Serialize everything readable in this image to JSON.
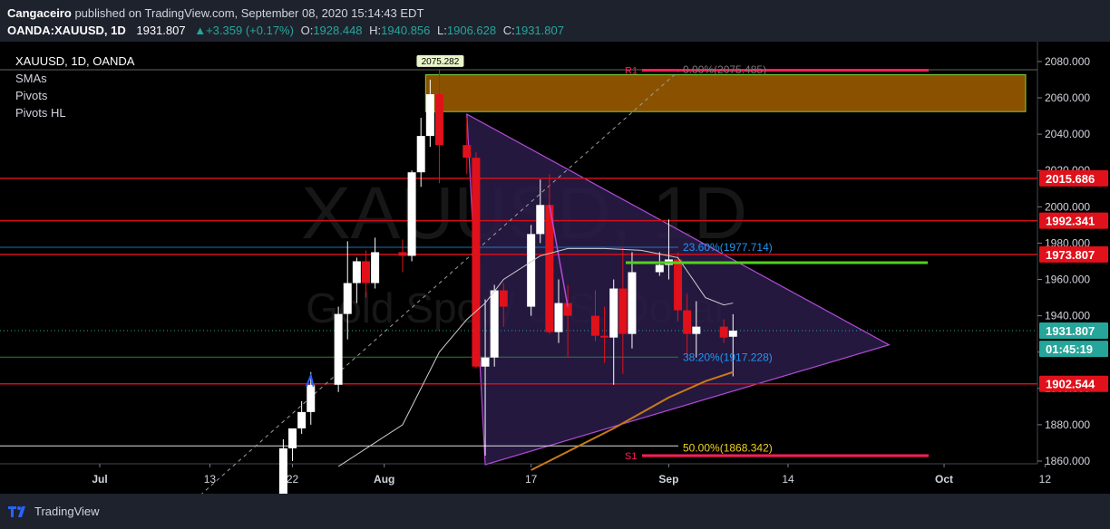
{
  "header": {
    "author": "Cangaceiro",
    "published_text": "published on TradingView.com, September 08, 2020 15:14:43 EDT",
    "symbol": "OANDA:XAUUSD, 1D",
    "last": "1931.807",
    "change": "+3.359 (+0.17%)",
    "o_label": "O:",
    "o": "1928.448",
    "h_label": "H:",
    "h": "1940.856",
    "l_label": "L:",
    "l": "1906.628",
    "c_label": "C:",
    "c": "1931.807"
  },
  "legend": {
    "title": "XAUUSD, 1D, OANDA",
    "items": [
      "SMAs",
      "Pivots",
      "Pivots HL"
    ]
  },
  "watermark": {
    "line1": "XAUUSD, 1D",
    "line2": "Gold Spot / U.S. Dollar"
  },
  "footer": {
    "brand": "TradingView"
  },
  "colors": {
    "bg": "#000000",
    "up": "#ffffff",
    "down": "#e0111b",
    "triangle": "#b34bd8",
    "triangle_fill": "#2a1c4a",
    "zone": "#8a5200",
    "zone_border": "#7fd13b",
    "resistance": "#d0101a",
    "green_level": "#52d11b",
    "sma_orange": "#c67a18",
    "sma_white": "#cfcfcf"
  },
  "chart_data": {
    "type": "candlestick",
    "x_ticks": [
      "Jul",
      "13",
      "22",
      "Aug",
      "17",
      "Sep",
      "14",
      "Oct",
      "12"
    ],
    "y_ticks": [
      "1860.000",
      "1880.000",
      "1900.000",
      "1920.000",
      "1940.000",
      "1960.000",
      "1980.000",
      "2000.000",
      "2020.000",
      "2040.000",
      "2060.000",
      "2080.000"
    ],
    "ylim": [
      1856,
      2086
    ],
    "candles": [
      {
        "d": "2020-07-21",
        "o": 1842,
        "h": 1872,
        "l": 1838,
        "c": 1867
      },
      {
        "d": "2020-07-22",
        "o": 1867,
        "h": 1877,
        "l": 1860,
        "c": 1878
      },
      {
        "d": "2020-07-23",
        "o": 1878,
        "h": 1893,
        "l": 1875,
        "c": 1887
      },
      {
        "d": "2020-07-24",
        "o": 1887,
        "h": 1909,
        "l": 1880,
        "c": 1902
      },
      {
        "d": "2020-07-27",
        "o": 1902,
        "h": 1945,
        "l": 1898,
        "c": 1941
      },
      {
        "d": "2020-07-28",
        "o": 1941,
        "h": 1981,
        "l": 1927,
        "c": 1958
      },
      {
        "d": "2020-07-29",
        "o": 1958,
        "h": 1972,
        "l": 1947,
        "c": 1970
      },
      {
        "d": "2020-07-30",
        "o": 1970,
        "h": 1976,
        "l": 1950,
        "c": 1958
      },
      {
        "d": "2020-07-31",
        "o": 1958,
        "h": 1983,
        "l": 1955,
        "c": 1975
      },
      {
        "d": "2020-08-03",
        "o": 1975,
        "h": 1982,
        "l": 1964,
        "c": 1973
      },
      {
        "d": "2020-08-04",
        "o": 1973,
        "h": 2020,
        "l": 1970,
        "c": 2019
      },
      {
        "d": "2020-08-05",
        "o": 2019,
        "h": 2049,
        "l": 2011,
        "c": 2039
      },
      {
        "d": "2020-08-06",
        "o": 2039,
        "h": 2070,
        "l": 2033,
        "c": 2062
      },
      {
        "d": "2020-08-07",
        "o": 2062,
        "h": 2075.282,
        "l": 2013,
        "c": 2034
      },
      {
        "d": "2020-08-10",
        "o": 2034,
        "h": 2049,
        "l": 2018,
        "c": 2027
      },
      {
        "d": "2020-08-11",
        "o": 2027,
        "h": 2030,
        "l": 1911,
        "c": 1912
      },
      {
        "d": "2020-08-12",
        "o": 1912,
        "h": 1949,
        "l": 1863,
        "c": 1917
      },
      {
        "d": "2020-08-13",
        "o": 1917,
        "h": 1957,
        "l": 1912,
        "c": 1954
      },
      {
        "d": "2020-08-14",
        "o": 1954,
        "h": 1958,
        "l": 1934,
        "c": 1945
      },
      {
        "d": "2020-08-17",
        "o": 1945,
        "h": 1990,
        "l": 1940,
        "c": 1985
      },
      {
        "d": "2020-08-18",
        "o": 1985,
        "h": 2015,
        "l": 1980,
        "c": 2001
      },
      {
        "d": "2020-08-19",
        "o": 2001,
        "h": 2018,
        "l": 1930,
        "c": 1931
      },
      {
        "d": "2020-08-20",
        "o": 1931,
        "h": 1960,
        "l": 1925,
        "c": 1947
      },
      {
        "d": "2020-08-21",
        "o": 1947,
        "h": 1957,
        "l": 1917,
        "c": 1940
      },
      {
        "d": "2020-08-24",
        "o": 1940,
        "h": 1954,
        "l": 1926,
        "c": 1929
      },
      {
        "d": "2020-08-25",
        "o": 1929,
        "h": 1945,
        "l": 1914,
        "c": 1928
      },
      {
        "d": "2020-08-26",
        "o": 1928,
        "h": 1960,
        "l": 1902,
        "c": 1955
      },
      {
        "d": "2020-08-27",
        "o": 1955,
        "h": 1978,
        "l": 1908,
        "c": 1930
      },
      {
        "d": "2020-08-28",
        "o": 1930,
        "h": 1975,
        "l": 1922,
        "c": 1964
      },
      {
        "d": "2020-08-31",
        "o": 1964,
        "h": 1975,
        "l": 1962,
        "c": 1968
      },
      {
        "d": "2020-09-01",
        "o": 1968,
        "h": 1993,
        "l": 1960,
        "c": 1971
      },
      {
        "d": "2020-09-02",
        "o": 1971,
        "h": 1975,
        "l": 1937,
        "c": 1943
      },
      {
        "d": "2020-09-03",
        "o": 1943,
        "h": 1952,
        "l": 1917,
        "c": 1930
      },
      {
        "d": "2020-09-04",
        "o": 1930,
        "h": 1948,
        "l": 1917,
        "c": 1934
      },
      {
        "d": "2020-09-07",
        "o": 1934,
        "h": 1938,
        "l": 1925,
        "c": 1928
      },
      {
        "d": "2020-09-08",
        "o": 1928.448,
        "h": 1940.856,
        "l": 1906.628,
        "c": 1931.807
      }
    ],
    "annotations": {
      "high_label": "2075.282",
      "fib": [
        {
          "label": "0.00%(2075.485)",
          "price": 2075.485,
          "color": "#7a7a7a"
        },
        {
          "label": "23.60%(1977.714)",
          "price": 1977.714,
          "color": "#2196f3"
        },
        {
          "label": "38.20%(1917.228)",
          "price": 1917.228,
          "color": "#2196f3"
        },
        {
          "label": "50.00%(1868.342)",
          "price": 1868.342,
          "color": "#f2d120"
        }
      ],
      "pivots": [
        {
          "label": "R1",
          "price": 2075.2
        },
        {
          "label": "S1",
          "price": 1863
        }
      ],
      "zone": {
        "top": 2072.7,
        "bottom": 2052.4
      },
      "resistance_lines": [
        2015.686,
        1992.341,
        1973.807,
        1902.544
      ],
      "green_level": 1969.2,
      "price_labels": [
        {
          "text": "2015.686",
          "price": 2015.686,
          "bg": "#e0111b"
        },
        {
          "text": "1992.341",
          "price": 1992.341,
          "bg": "#e0111b"
        },
        {
          "text": "1973.807",
          "price": 1973.807,
          "bg": "#e0111b"
        },
        {
          "text": "1931.807",
          "price": 1931.807,
          "bg": "#26a69a"
        },
        {
          "text": "01:45:19",
          "price": 1921.8,
          "bg": "#26a69a"
        },
        {
          "text": "1902.544",
          "price": 1902.544,
          "bg": "#e0111b"
        }
      ]
    }
  }
}
